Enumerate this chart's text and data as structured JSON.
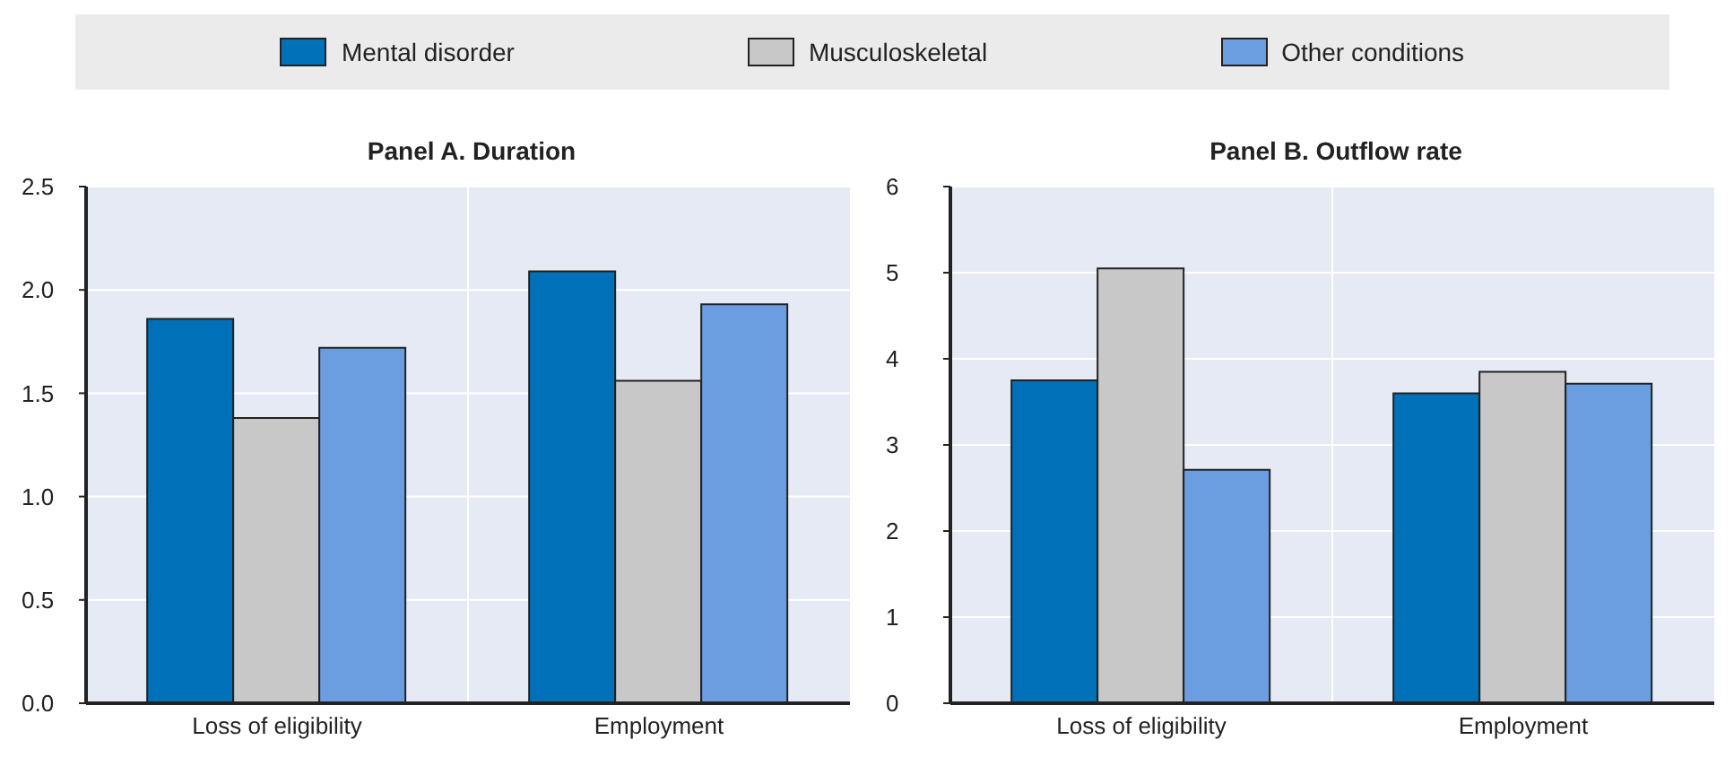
{
  "chart_data": [
    {
      "type": "bar",
      "title": "Panel A. Duration",
      "categories": [
        "Loss of eligibility",
        "Employment"
      ],
      "series": [
        {
          "name": "Mental disorder",
          "color": "#0070b8",
          "values": [
            1.86,
            2.09
          ]
        },
        {
          "name": "Musculoskeletal",
          "color": "#c8c8c8",
          "values": [
            1.38,
            1.56
          ]
        },
        {
          "name": "Other conditions",
          "color": "#6a9ee0",
          "values": [
            1.72,
            1.93
          ]
        }
      ],
      "ylim": [
        0,
        2.5
      ],
      "yticks": [
        {
          "value": 0,
          "label": "0.0"
        },
        {
          "value": 0.5,
          "label": "0.5"
        },
        {
          "value": 1,
          "label": "1.0"
        },
        {
          "value": 1.5,
          "label": "1.5"
        },
        {
          "value": 2,
          "label": "2.0"
        },
        {
          "value": 2.5,
          "label": "2.5"
        }
      ],
      "grid": true,
      "legend": "top"
    },
    {
      "type": "bar",
      "title": "Panel B. Outflow rate",
      "categories": [
        "Loss of eligibility",
        "Employment"
      ],
      "series": [
        {
          "color": "#0070b8",
          "values": [
            3.75,
            3.6
          ]
        },
        {
          "color": "#c8c8c8",
          "values": [
            5.05,
            3.85
          ]
        },
        {
          "color": "#6a9ee0",
          "values": [
            2.71,
            3.71
          ]
        }
      ],
      "ylim": [
        0,
        6
      ],
      "yticks": [
        0,
        1,
        2,
        3,
        4,
        5,
        6
      ],
      "grid": true
    }
  ]
}
